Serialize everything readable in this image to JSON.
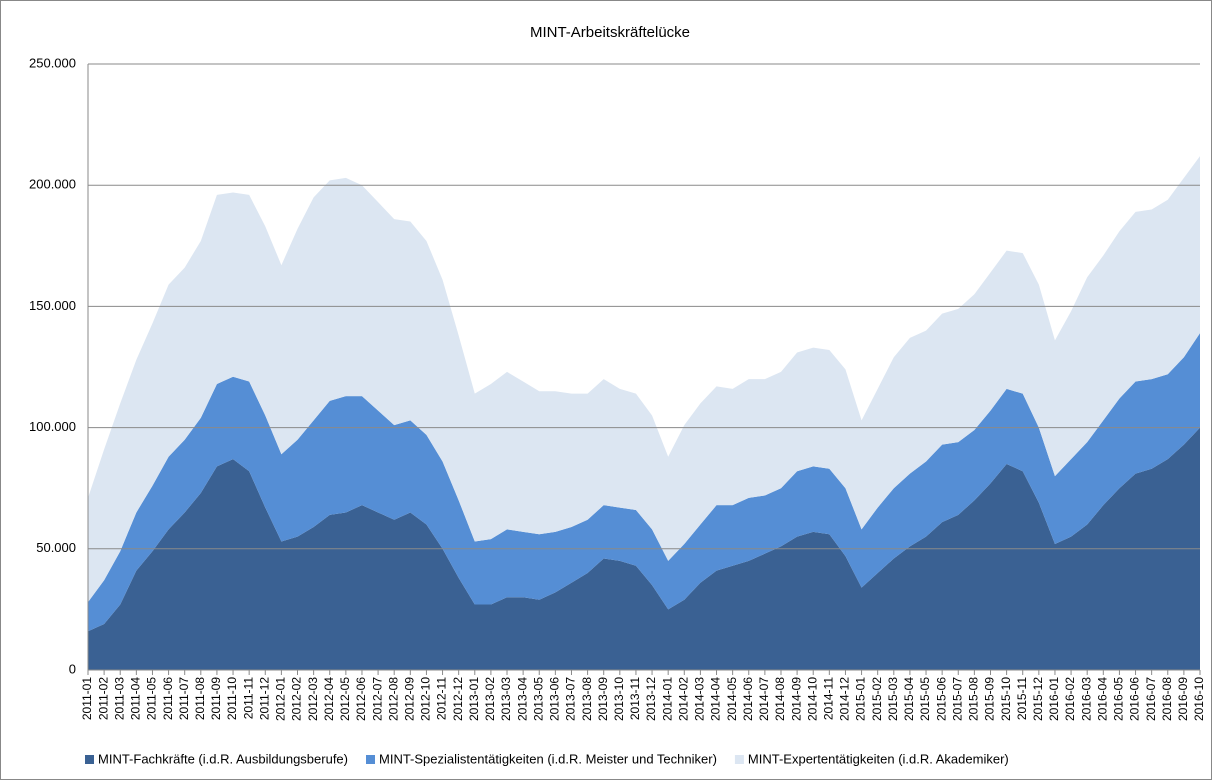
{
  "chart_data": {
    "type": "stacked-area",
    "title": "MINT-Arbeitskräftelücke",
    "categories": [
      "2011-01",
      "2011-02",
      "2011-03",
      "2011-04",
      "2011-05",
      "2011-06",
      "2011-07",
      "2011-08",
      "2011-09",
      "2011-10",
      "2011-11",
      "2011-12",
      "2012-01",
      "2012-02",
      "2012-03",
      "2012-04",
      "2012-05",
      "2012-06",
      "2012-07",
      "2012-08",
      "2012-09",
      "2012-10",
      "2012-11",
      "2012-12",
      "2013-01",
      "2013-02",
      "2013-03",
      "2013-04",
      "2013-05",
      "2013-06",
      "2013-07",
      "2013-08",
      "2013-09",
      "2013-10",
      "2013-11",
      "2013-12",
      "2014-01",
      "2014-02",
      "2014-03",
      "2014-04",
      "2014-05",
      "2014-06",
      "2014-07",
      "2014-08",
      "2014-09",
      "2014-10",
      "2014-11",
      "2014-12",
      "2015-01",
      "2015-02",
      "2015-03",
      "2015-04",
      "2015-05",
      "2015-06",
      "2015-07",
      "2015-08",
      "2015-09",
      "2015-10",
      "2015-11",
      "2015-12",
      "2016-01",
      "2016-02",
      "2016-03",
      "2016-04",
      "2016-05",
      "2016-06",
      "2016-07",
      "2016-08",
      "2016-09",
      "2016-10"
    ],
    "series": [
      {
        "name": "MINT-Fachkräfte (i.d.R. Ausbildungsberufe)",
        "color": "#3a6193",
        "values": [
          16000,
          19000,
          27000,
          41000,
          49000,
          58000,
          65000,
          73000,
          84000,
          87000,
          82000,
          67000,
          53000,
          55000,
          59000,
          64000,
          65000,
          68000,
          65000,
          62000,
          65000,
          60000,
          50000,
          38000,
          27000,
          27000,
          30000,
          30000,
          29000,
          32000,
          36000,
          40000,
          46000,
          45000,
          43000,
          35000,
          25000,
          29000,
          36000,
          41000,
          43000,
          45000,
          48000,
          51000,
          55000,
          57000,
          56000,
          47000,
          34000,
          40000,
          46000,
          51000,
          55000,
          61000,
          64000,
          70000,
          77000,
          85000,
          82000,
          69000,
          52000,
          55000,
          60000,
          68000,
          75000,
          81000,
          83000,
          87000,
          93000,
          100000
        ]
      },
      {
        "name": "MINT-Spezialistentätigkeiten (i.d.R. Meister und Techniker)",
        "color": "#558ed5",
        "values": [
          12000,
          18000,
          22000,
          24000,
          27000,
          30000,
          30000,
          31000,
          34000,
          34000,
          37000,
          38000,
          36000,
          40000,
          44000,
          47000,
          48000,
          45000,
          42000,
          39000,
          38000,
          37000,
          36000,
          32000,
          26000,
          27000,
          28000,
          27000,
          27000,
          25000,
          23000,
          22000,
          22000,
          22000,
          23000,
          23000,
          20000,
          23000,
          24000,
          27000,
          25000,
          26000,
          24000,
          24000,
          27000,
          27000,
          27000,
          28000,
          24000,
          27000,
          29000,
          30000,
          31000,
          32000,
          30000,
          29000,
          30000,
          31000,
          32000,
          31000,
          28000,
          32000,
          34000,
          35000,
          37000,
          38000,
          37000,
          35000,
          36000,
          39000
        ]
      },
      {
        "name": "MINT-Expertentätigkeiten (i.d.R. Akademiker)",
        "color": "#dce6f2",
        "values": [
          43000,
          54000,
          61000,
          63000,
          67000,
          71000,
          71000,
          73000,
          78000,
          76000,
          77000,
          78000,
          78000,
          87000,
          92000,
          91000,
          90000,
          87000,
          86000,
          85000,
          82000,
          80000,
          75000,
          68000,
          61000,
          64000,
          65000,
          62000,
          59000,
          58000,
          55000,
          52000,
          52000,
          49000,
          48000,
          47000,
          43000,
          49000,
          50000,
          49000,
          48000,
          49000,
          48000,
          48000,
          49000,
          49000,
          49000,
          49000,
          45000,
          49000,
          54000,
          56000,
          54000,
          54000,
          55000,
          56000,
          57000,
          57000,
          58000,
          59000,
          56000,
          61000,
          68000,
          68000,
          69000,
          70000,
          70000,
          72000,
          74000,
          73000
        ]
      }
    ],
    "ylim": [
      0,
      250000
    ],
    "yticks": [
      0,
      {
        "value": 50000,
        "label": "50.000"
      },
      {
        "value": 100000,
        "label": "100.000"
      },
      {
        "value": 150000,
        "label": "150.000"
      },
      {
        "value": 200000,
        "label": "200.000"
      },
      {
        "value": 250000,
        "label": "250.000"
      }
    ],
    "grid": true,
    "legend": "bottom"
  }
}
